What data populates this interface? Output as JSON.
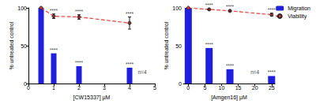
{
  "chart_data": [
    {
      "type": "bar",
      "xlabel": "[CW15337] μM",
      "ylabel": "% untreated control",
      "xlim": [
        0,
        5
      ],
      "xticks": [
        0,
        1,
        2,
        3,
        4,
        5
      ],
      "ylim": [
        0,
        100
      ],
      "yticks": [
        0,
        50,
        100
      ],
      "grid": false,
      "series": [
        {
          "name": "Migration",
          "type": "bar",
          "color": "#1f1fe0",
          "x": [
            0.5,
            1,
            2,
            4
          ],
          "values": [
            100,
            40,
            23,
            21
          ]
        },
        {
          "name": "Viability",
          "type": "line",
          "color": "#e8413a",
          "line_style": "dashed",
          "marker": "circle",
          "x": [
            0.5,
            1,
            2,
            4
          ],
          "values": [
            100,
            89,
            88,
            80
          ],
          "errors": [
            null,
            3,
            3,
            8
          ]
        }
      ],
      "annotations": [
        {
          "text": "****",
          "x": 1,
          "y": 92
        },
        {
          "text": "****",
          "x": 2,
          "y": 91
        },
        {
          "text": "****",
          "x": 4,
          "y": 88
        },
        {
          "text": "****",
          "x": 1,
          "y": 40
        },
        {
          "text": "****",
          "x": 2,
          "y": 23
        },
        {
          "text": "****",
          "x": 4,
          "y": 21
        },
        {
          "text": "n=4",
          "x": 4.5,
          "y": 10
        }
      ]
    },
    {
      "type": "bar",
      "xlabel": "[Amgen16] μM",
      "ylabel": "% untreated control",
      "xlim": [
        -1.5,
        26
      ],
      "xticks": [
        0,
        5,
        10,
        15,
        20,
        25
      ],
      "ylim": [
        0,
        100
      ],
      "yticks": [
        0,
        50,
        100
      ],
      "grid": false,
      "legend": "top right",
      "series": [
        {
          "name": "Migration",
          "type": "bar",
          "color": "#1f1fe0",
          "x": [
            0,
            6.25,
            12.5,
            25
          ],
          "values": [
            100,
            47,
            19,
            10
          ]
        },
        {
          "name": "Viability",
          "type": "line",
          "color": "#e8413a",
          "line_style": "dashed",
          "marker": "circle",
          "x": [
            0,
            6.25,
            12.5,
            25
          ],
          "values": [
            100,
            98,
            96,
            91
          ],
          "errors": [
            null,
            1,
            1,
            2
          ]
        }
      ],
      "annotations": [
        {
          "text": "****",
          "x": 6.25,
          "y": 99
        },
        {
          "text": "****",
          "x": 12.5,
          "y": 97
        },
        {
          "text": "****",
          "x": 25,
          "y": 93
        },
        {
          "text": "****",
          "x": 6.25,
          "y": 47
        },
        {
          "text": "****",
          "x": 12.5,
          "y": 19
        },
        {
          "text": "****",
          "x": 25,
          "y": 10
        },
        {
          "text": "n=4",
          "x": 20,
          "y": 10
        }
      ]
    }
  ]
}
